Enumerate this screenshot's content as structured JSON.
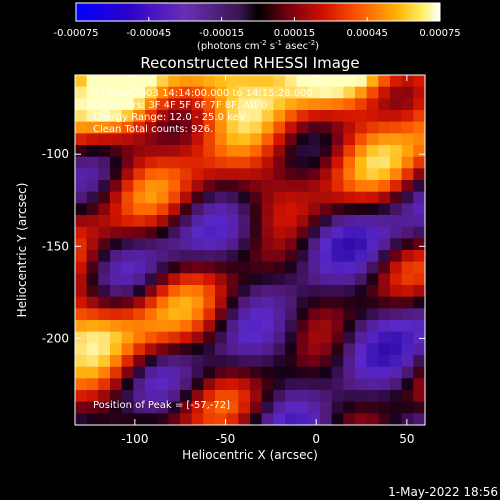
{
  "chart_data": {
    "type": "heatmap",
    "title": "Reconstructed RHESSI Image",
    "xlabel": "Heliocentric X (arcsec)",
    "ylabel": "Heliocentric Y (arcsec)",
    "xlim": [
      -133,
      60
    ],
    "ylim": [
      -247,
      -57
    ],
    "x_ticks": [
      -100,
      -50,
      0,
      50
    ],
    "x_tick_labels": [
      "-100",
      "-50",
      "0",
      "50"
    ],
    "y_ticks": [
      -100,
      -150,
      -200
    ],
    "y_tick_labels": [
      "-100",
      "-150",
      "-200"
    ],
    "colorbar": {
      "range": [
        -0.00075,
        0.00075
      ],
      "ticks": [
        -0.00075,
        -0.00045,
        -0.00015,
        0.00015,
        0.00045,
        0.00075
      ],
      "tick_labels": [
        "-0.00075",
        "-0.00045",
        "-0.00015",
        "0.00015",
        "0.00045",
        "0.00075"
      ],
      "unit_pre": "(photons cm",
      "unit_sup1": "-2",
      "unit_mid1": " s",
      "unit_sup2": "-1",
      "unit_mid2": " asec",
      "unit_sup3": "-2",
      "unit_post": ")"
    },
    "annotations": [
      "21-May-2003 14:14:00.000 to 14:15:28.000",
      "Detectors: 3F 4F 5F 6F 7F 8F, Att 0",
      "Energy Range: 12.0 - 25.0 keV",
      "Clean    Total counts: 926."
    ],
    "peak_label": "Position of Peak = [-57,-72]",
    "peak_position": [
      -57,
      -72
    ],
    "timestamp": "1-May-2022 18:56",
    "grid": false
  },
  "colors": {
    "background": "#000000",
    "foreground": "#ffffff"
  }
}
